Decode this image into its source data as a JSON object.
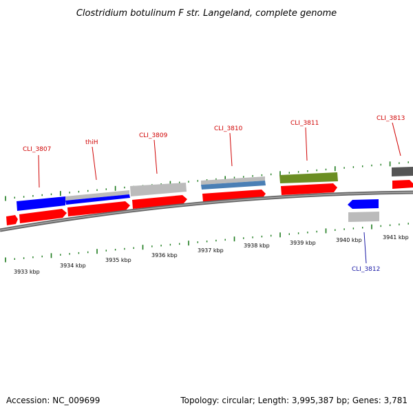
{
  "title": "Clostridium botulinum F str. Langeland, complete genome",
  "footer": {
    "accession": "Accession: NC_009699",
    "summary": "Topology: circular; Length: 3,995,387 bp; Genes: 3,781"
  },
  "colors": {
    "forward_gene": "#ff0000",
    "reverse_gene": "#0000ff",
    "label_forward": "#d00000",
    "label_reverse": "#1a1aa6",
    "tick_green": "#1a7a1a",
    "backbone": "#777777",
    "feature_gray": "#bbbbbb",
    "feature_dark_gray": "#555555",
    "feature_steelblue": "#4a7fb5",
    "feature_olive": "#6b8e23"
  },
  "scale_labels": [
    {
      "kbp": 3933,
      "text": "3933 kbp"
    },
    {
      "kbp": 3934,
      "text": "3934 kbp"
    },
    {
      "kbp": 3935,
      "text": "3935 kbp"
    },
    {
      "kbp": 3936,
      "text": "3936 kbp"
    },
    {
      "kbp": 3937,
      "text": "3937 kbp"
    },
    {
      "kbp": 3938,
      "text": "3938 kbp"
    },
    {
      "kbp": 3939,
      "text": "3939 kbp"
    },
    {
      "kbp": 3940,
      "text": "3940 kbp"
    },
    {
      "kbp": 3941,
      "text": "3941 kbp"
    }
  ],
  "gene_labels": [
    {
      "id": "CLI_3807",
      "text": "CLI_3807",
      "strand": "+"
    },
    {
      "id": "thiH",
      "text": "thiH",
      "strand": "+"
    },
    {
      "id": "CLI_3809",
      "text": "CLI_3809",
      "strand": "+"
    },
    {
      "id": "CLI_3810",
      "text": "CLI_3810",
      "strand": "+"
    },
    {
      "id": "CLI_3811",
      "text": "CLI_3811",
      "strand": "+"
    },
    {
      "id": "CLI_3812",
      "text": "CLI_3812",
      "strand": "-"
    },
    {
      "id": "CLI_3813",
      "text": "CLI_3813",
      "strand": "+"
    }
  ]
}
